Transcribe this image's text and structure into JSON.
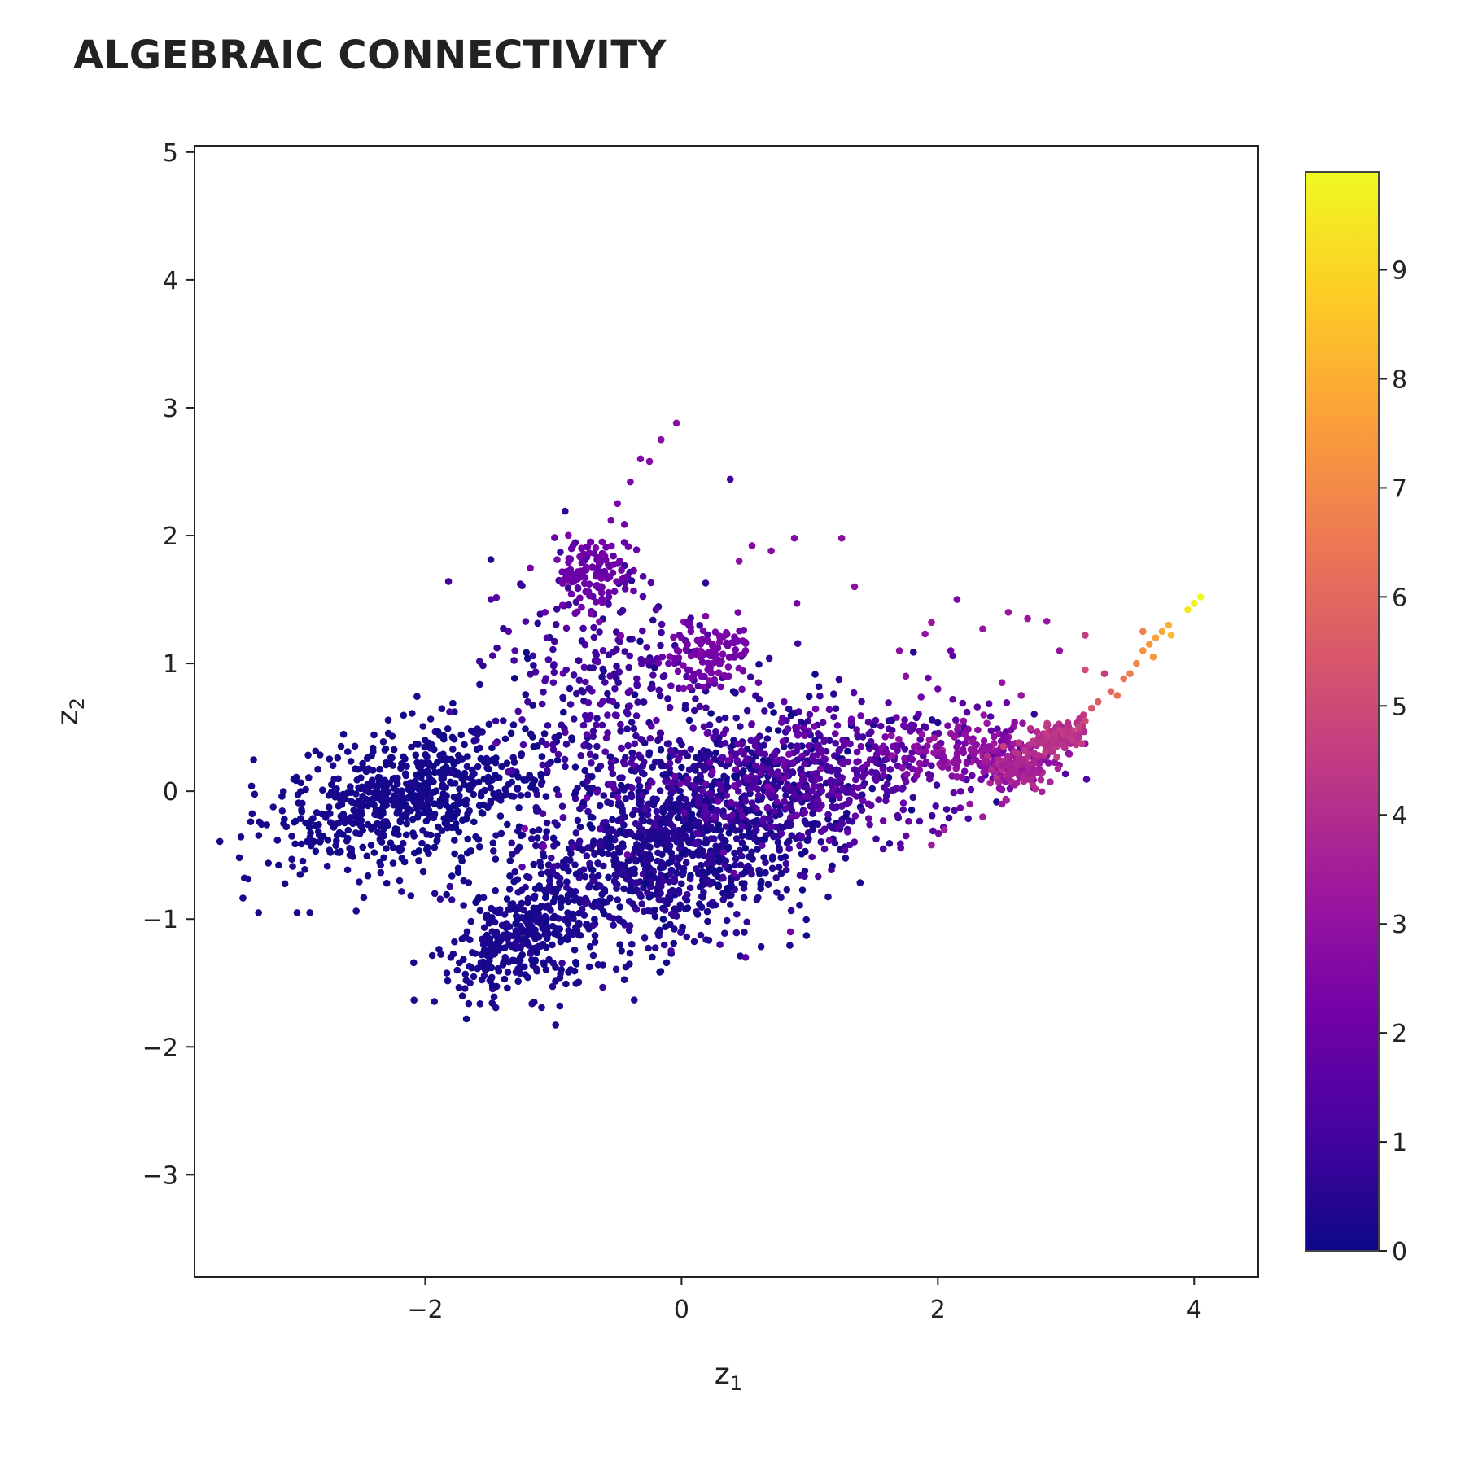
{
  "chart_data": {
    "type": "scatter",
    "title": "ALGEBRAIC CONNECTIVITY",
    "xlabel": "z",
    "xlabel_sub": "1",
    "ylabel": "z",
    "ylabel_sub": "2",
    "xlim": [
      -3.8,
      4.5
    ],
    "ylim": [
      -3.8,
      5.05
    ],
    "x_ticks": [
      -2,
      0,
      2,
      4
    ],
    "x_tick_labels": [
      "−2",
      "0",
      "2",
      "4"
    ],
    "y_ticks": [
      -3,
      -2,
      -1,
      0,
      1,
      2,
      3,
      4,
      5
    ],
    "y_tick_labels": [
      "−3",
      "−2",
      "−1",
      "0",
      "1",
      "2",
      "3",
      "4",
      "5"
    ],
    "grid": false,
    "colorscale": "plasma",
    "colorbar": {
      "range": [
        0,
        9.9
      ],
      "ticks": [
        0,
        1,
        2,
        3,
        4,
        5,
        6,
        7,
        8,
        9
      ],
      "tick_labels": [
        "0",
        "1",
        "2",
        "3",
        "4",
        "5",
        "6",
        "7",
        "8",
        "9"
      ]
    },
    "marker_color_points": {
      "note_fields": [
        "x",
        "y",
        "color_value"
      ],
      "points": [
        [
          -0.04,
          2.88,
          2.8
        ],
        [
          -0.16,
          2.75,
          2.7
        ],
        [
          -0.32,
          2.6,
          2.6
        ],
        [
          -0.25,
          2.58,
          2.6
        ],
        [
          -0.4,
          2.42,
          2.5
        ],
        [
          -0.5,
          2.25,
          2.4
        ],
        [
          -0.55,
          2.12,
          2.3
        ],
        [
          -0.62,
          1.95,
          2.2
        ],
        [
          -0.78,
          1.9,
          2.2
        ],
        [
          -0.88,
          1.82,
          2.1
        ],
        [
          -0.85,
          1.7,
          2.0
        ],
        [
          -0.72,
          1.62,
          1.9
        ],
        [
          -0.6,
          1.72,
          1.8
        ],
        [
          -0.45,
          1.65,
          1.6
        ],
        [
          -0.3,
          1.68,
          1.4
        ],
        [
          -0.2,
          1.42,
          1.6
        ],
        [
          0.38,
          2.44,
          1.1
        ],
        [
          0.55,
          1.92,
          2.7
        ],
        [
          0.88,
          1.98,
          2.7
        ],
        [
          1.25,
          1.98,
          2.8
        ],
        [
          0.45,
          1.8,
          2.9
        ],
        [
          0.7,
          1.88,
          2.8
        ],
        [
          1.35,
          1.6,
          2.9
        ],
        [
          0.9,
          1.47,
          2.4
        ],
        [
          -1.35,
          1.25,
          1.5
        ],
        [
          -1.3,
          1.1,
          1.4
        ],
        [
          -1.05,
          1.2,
          1.3
        ],
        [
          -0.9,
          0.95,
          1.2
        ],
        [
          -1.0,
          0.85,
          1.1
        ],
        [
          -1.2,
          0.7,
          0.9
        ],
        [
          -1.45,
          0.55,
          0.8
        ],
        [
          -1.6,
          0.4,
          0.6
        ],
        [
          0.0,
          1.2,
          2.2
        ],
        [
          0.15,
          1.15,
          2.3
        ],
        [
          0.3,
          1.2,
          2.4
        ],
        [
          0.4,
          1.05,
          2.1
        ],
        [
          -0.15,
          1.05,
          2.0
        ],
        [
          0.05,
          0.95,
          1.9
        ],
        [
          0.6,
          0.85,
          1.8
        ],
        [
          0.8,
          0.7,
          1.7
        ],
        [
          1.0,
          0.6,
          1.6
        ],
        [
          1.2,
          0.45,
          1.9
        ],
        [
          1.4,
          0.35,
          2.0
        ],
        [
          1.6,
          0.3,
          2.2
        ],
        [
          1.8,
          0.25,
          2.3
        ],
        [
          2.0,
          0.35,
          2.6
        ],
        [
          2.2,
          0.3,
          2.7
        ],
        [
          2.4,
          0.35,
          3.0
        ],
        [
          2.5,
          0.2,
          3.6
        ],
        [
          2.6,
          0.15,
          3.7
        ],
        [
          2.65,
          0.25,
          3.9
        ],
        [
          2.7,
          0.1,
          3.8
        ],
        [
          2.55,
          0.1,
          3.6
        ],
        [
          2.6,
          0.05,
          3.5
        ],
        [
          2.75,
          0.3,
          4.1
        ],
        [
          2.8,
          0.4,
          4.2
        ],
        [
          2.9,
          0.42,
          4.3
        ],
        [
          3.0,
          0.45,
          4.4
        ],
        [
          3.05,
          0.4,
          4.5
        ],
        [
          2.85,
          0.35,
          4.2
        ],
        [
          2.95,
          0.48,
          4.5
        ],
        [
          3.1,
          0.5,
          4.8
        ],
        [
          3.15,
          0.55,
          5.0
        ],
        [
          3.2,
          0.65,
          5.5
        ],
        [
          3.25,
          0.7,
          5.7
        ],
        [
          3.35,
          0.78,
          6.0
        ],
        [
          3.45,
          0.88,
          6.5
        ],
        [
          3.5,
          0.92,
          6.7
        ],
        [
          3.55,
          1.0,
          7.0
        ],
        [
          3.6,
          1.1,
          7.3
        ],
        [
          3.65,
          1.15,
          7.4
        ],
        [
          3.68,
          1.05,
          7.5
        ],
        [
          3.7,
          1.2,
          7.7
        ],
        [
          3.6,
          1.25,
          6.8
        ],
        [
          3.75,
          1.25,
          7.9
        ],
        [
          3.8,
          1.3,
          8.1
        ],
        [
          3.82,
          1.22,
          8.4
        ],
        [
          3.95,
          1.42,
          9.5
        ],
        [
          4.0,
          1.47,
          9.7
        ],
        [
          4.05,
          1.52,
          9.9
        ],
        [
          3.4,
          0.75,
          6.3
        ],
        [
          3.15,
          0.95,
          5.2
        ],
        [
          3.15,
          1.22,
          4.6
        ],
        [
          2.85,
          1.33,
          3.2
        ],
        [
          2.7,
          1.35,
          3.3
        ],
        [
          2.55,
          1.4,
          3.2
        ],
        [
          2.35,
          1.27,
          3.1
        ],
        [
          1.95,
          1.32,
          3.3
        ],
        [
          1.9,
          1.23,
          3.0
        ],
        [
          2.1,
          1.1,
          2.2
        ],
        [
          2.15,
          1.5,
          2.5
        ],
        [
          2.95,
          1.1,
          3.1
        ],
        [
          3.3,
          0.92,
          4.6
        ],
        [
          1.7,
          1.1,
          2.8
        ],
        [
          1.75,
          0.9,
          2.9
        ],
        [
          2.0,
          0.8,
          2.0
        ],
        [
          2.65,
          0.75,
          3.2
        ],
        [
          2.5,
          0.85,
          3.1
        ],
        [
          2.2,
          0.55,
          2.9
        ],
        [
          1.95,
          -0.42,
          3.4
        ],
        [
          2.05,
          -0.3,
          3.5
        ],
        [
          2.35,
          -0.2,
          3.4
        ],
        [
          2.5,
          -0.1,
          3.3
        ],
        [
          2.25,
          -0.1,
          3.0
        ],
        [
          0.85,
          -1.1,
          2.1
        ],
        [
          0.5,
          -1.3,
          1.5
        ],
        [
          0.3,
          -1.2,
          1.0
        ],
        [
          -0.95,
          -1.68,
          0.3
        ],
        [
          -1.15,
          -1.65,
          0.3
        ],
        [
          -1.65,
          -1.5,
          0.3
        ],
        [
          -1.75,
          -1.4,
          0.3
        ],
        [
          -1.8,
          -1.3,
          0.3
        ],
        [
          -3.3,
          -0.95,
          0.2
        ],
        [
          -3.45,
          -0.52,
          0.2
        ],
        [
          -2.9,
          -0.95,
          0.2
        ],
        [
          -3.0,
          -0.95,
          0.2
        ],
        [
          -2.2,
          -0.7,
          0.2
        ],
        [
          -2.3,
          -0.72,
          0.2
        ],
        [
          -1.7,
          -0.7,
          0.3
        ],
        [
          -1.3,
          -0.63,
          0.4
        ]
      ]
    }
  }
}
